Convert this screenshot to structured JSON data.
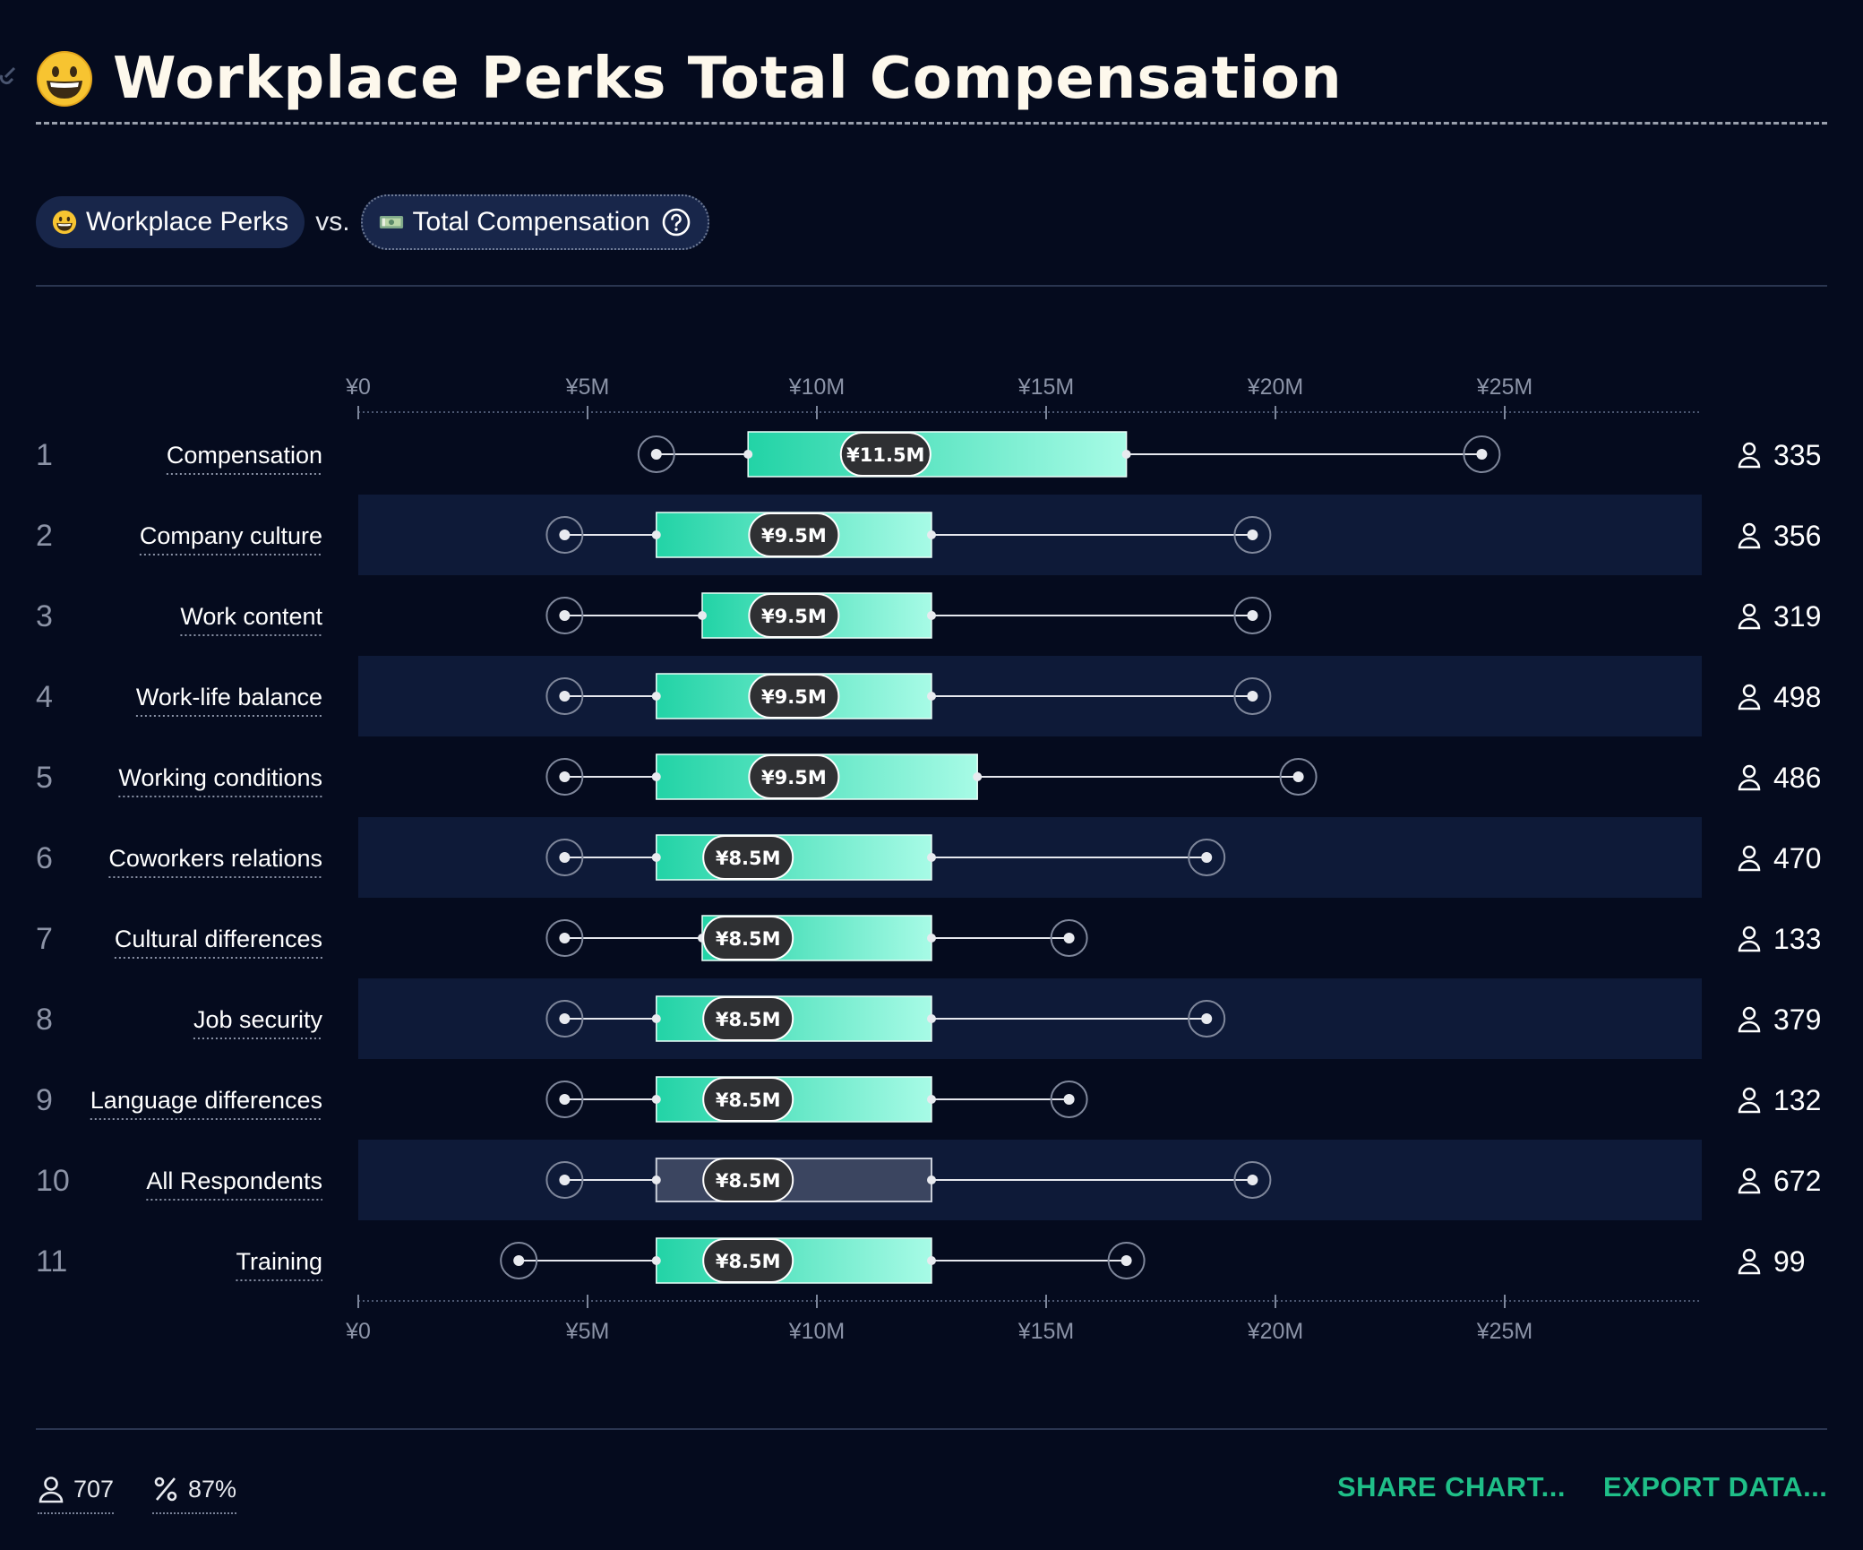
{
  "header": {
    "title": "Workplace Perks Total Compensation",
    "title_icon": "grinning-face-emoji"
  },
  "comparison": {
    "left_label": "Workplace Perks",
    "left_icon": "grinning-face-emoji",
    "vs_label": "vs.",
    "right_label": "Total Compensation",
    "right_icon": "banknote-emoji"
  },
  "chart_data": {
    "type": "boxplot",
    "x_ticks": [
      "¥0",
      "¥5M",
      "¥10M",
      "¥15M",
      "¥20M",
      "¥25M"
    ],
    "xlim": [
      0,
      29.3
    ],
    "unit": "M JPY",
    "rows": [
      {
        "rank": "1",
        "label": "Compensation",
        "min": 6.5,
        "q1": 8.5,
        "median": 11.5,
        "median_label": "¥11.5M",
        "q3": 16.75,
        "max": 24.5,
        "count": "335"
      },
      {
        "rank": "2",
        "label": "Company culture",
        "min": 4.5,
        "q1": 6.5,
        "median": 9.5,
        "median_label": "¥9.5M",
        "q3": 12.5,
        "max": 19.5,
        "count": "356"
      },
      {
        "rank": "3",
        "label": "Work content",
        "min": 4.5,
        "q1": 7.5,
        "median": 9.5,
        "median_label": "¥9.5M",
        "q3": 12.5,
        "max": 19.5,
        "count": "319"
      },
      {
        "rank": "4",
        "label": "Work-life balance",
        "min": 4.5,
        "q1": 6.5,
        "median": 9.5,
        "median_label": "¥9.5M",
        "q3": 12.5,
        "max": 19.5,
        "count": "498"
      },
      {
        "rank": "5",
        "label": "Working conditions",
        "min": 4.5,
        "q1": 6.5,
        "median": 9.5,
        "median_label": "¥9.5M",
        "q3": 13.5,
        "max": 20.5,
        "count": "486"
      },
      {
        "rank": "6",
        "label": "Coworkers relations",
        "min": 4.5,
        "q1": 6.5,
        "median": 8.5,
        "median_label": "¥8.5M",
        "q3": 12.5,
        "max": 18.5,
        "count": "470"
      },
      {
        "rank": "7",
        "label": "Cultural differences",
        "min": 4.5,
        "q1": 7.5,
        "median": 8.5,
        "median_label": "¥8.5M",
        "q3": 12.5,
        "max": 15.5,
        "count": "133"
      },
      {
        "rank": "8",
        "label": "Job security",
        "min": 4.5,
        "q1": 6.5,
        "median": 8.5,
        "median_label": "¥8.5M",
        "q3": 12.5,
        "max": 18.5,
        "count": "379"
      },
      {
        "rank": "9",
        "label": "Language differences",
        "min": 4.5,
        "q1": 6.5,
        "median": 8.5,
        "median_label": "¥8.5M",
        "q3": 12.5,
        "max": 15.5,
        "count": "132"
      },
      {
        "rank": "10",
        "label": "All Respondents",
        "min": 4.5,
        "q1": 6.5,
        "median": 8.5,
        "median_label": "¥8.5M",
        "q3": 12.5,
        "max": 19.5,
        "count": "672",
        "highlight": true
      },
      {
        "rank": "11",
        "label": "Training",
        "min": 3.5,
        "q1": 6.5,
        "median": 8.5,
        "median_label": "¥8.5M",
        "q3": 12.5,
        "max": 16.75,
        "count": "99"
      }
    ]
  },
  "footer": {
    "respondents": "707",
    "percentage": "87%",
    "share_label": "SHARE CHART...",
    "export_label": "EXPORT DATA..."
  },
  "colors": {
    "background": "#050b1e",
    "band": "#0e1a38",
    "box_start": "#22d3a6",
    "box_end": "#a7fbe6",
    "accent": "#1fbf88"
  }
}
